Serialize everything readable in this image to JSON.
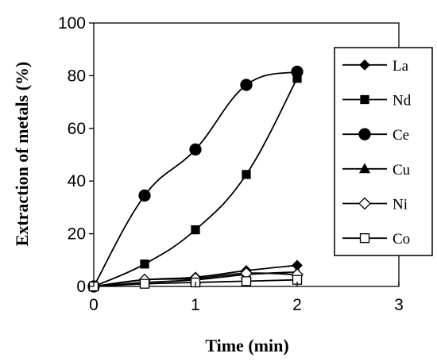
{
  "chart_data": {
    "type": "line",
    "xlabel": "Time (min)",
    "ylabel": "Extraction of metals (%)",
    "xlim": [
      0,
      3
    ],
    "ylim": [
      0,
      100
    ],
    "xticks": [
      "0",
      "1",
      "2",
      "3"
    ],
    "yticks": [
      "0",
      "20",
      "40",
      "60",
      "80",
      "100"
    ],
    "grid": false,
    "legend_position": "right",
    "x": [
      0,
      0.5,
      1,
      1.5,
      2
    ],
    "series": [
      {
        "name": "La",
        "marker": "diamond-filled",
        "values": [
          0,
          2.5,
          3.5,
          6,
          8
        ]
      },
      {
        "name": "Nd",
        "marker": "square-filled",
        "values": [
          0,
          8.5,
          21.5,
          42.5,
          79
        ]
      },
      {
        "name": "Ce",
        "marker": "circle-filled",
        "values": [
          0,
          34.5,
          52,
          76.5,
          81.5
        ]
      },
      {
        "name": "Cu",
        "marker": "triangle-filled",
        "values": [
          0,
          1.5,
          2.5,
          4.5,
          5.5
        ]
      },
      {
        "name": "Ni",
        "marker": "diamond-open",
        "values": [
          0,
          2.5,
          3,
          5,
          4.5
        ]
      },
      {
        "name": "Co",
        "marker": "square-open",
        "values": [
          0,
          1,
          1.5,
          2,
          2.5
        ]
      }
    ]
  }
}
